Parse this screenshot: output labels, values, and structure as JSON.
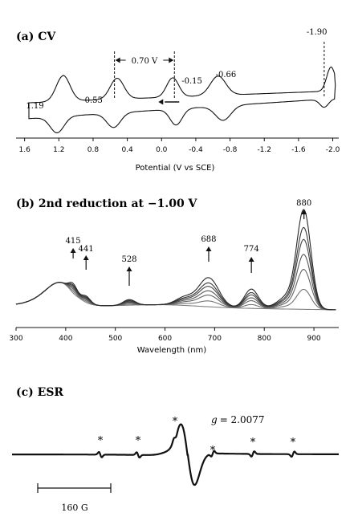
{
  "chart_data": [
    {
      "panel": "a",
      "type": "line",
      "title": "(a) CV",
      "xlabel": "Potential (V vs SCE)",
      "xlim": [
        1.7,
        -2.07
      ],
      "x_reversed": true,
      "xticks": [
        1.6,
        1.2,
        0.8,
        0.4,
        0.0,
        -0.4,
        -0.8,
        -1.2,
        -1.6,
        -2.0
      ],
      "xtick_labels": [
        "1.6",
        "1.2",
        "0.8",
        "0.4",
        "0.0",
        "-0.4",
        "-0.8",
        "-1.2",
        "-1.6",
        "-2.0"
      ],
      "peaks": [
        {
          "label": "1.19",
          "E": 1.19
        },
        {
          "label": "0.55",
          "E": 0.55
        },
        {
          "label": "-0.15",
          "E": -0.15
        },
        {
          "label": "-0.66",
          "E": -0.66
        },
        {
          "label": "-1.90",
          "E": -1.9
        }
      ],
      "separation_label": "0.70 V",
      "separation_between": [
        0.55,
        -0.15
      ],
      "scan_arrow_direction": "left"
    },
    {
      "panel": "b",
      "type": "line",
      "title": "(b) 2nd reduction at −1.00 V",
      "xlabel": "Wavelength (nm)",
      "xlim": [
        300,
        950
      ],
      "xticks": [
        300,
        400,
        500,
        600,
        700,
        800,
        900
      ],
      "xtick_labels": [
        "300",
        "400",
        "500",
        "600",
        "700",
        "800",
        "900"
      ],
      "bands": [
        {
          "label": "415",
          "x": 415
        },
        {
          "label": "441",
          "x": 441
        },
        {
          "label": "528",
          "x": 528
        },
        {
          "label": "688",
          "x": 688
        },
        {
          "label": "774",
          "x": 774
        },
        {
          "label": "880",
          "x": 880
        }
      ],
      "band_arrow_direction": "up",
      "series_count": 7
    },
    {
      "panel": "c",
      "type": "line",
      "title": "(c) ESR",
      "g_label": "g",
      "g_value": "= 2.0077",
      "hyperfine_marker": "*",
      "hyperfine_count": 6,
      "scale_bar_label": "160 G"
    }
  ]
}
